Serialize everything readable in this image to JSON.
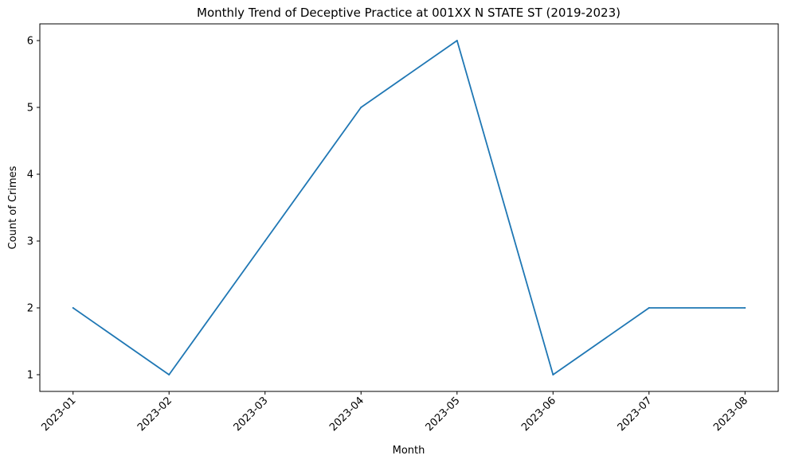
{
  "chart_data": {
    "type": "line",
    "title": "Monthly Trend of Deceptive Practice at 001XX N STATE ST (2019-2023)",
    "xlabel": "Month",
    "ylabel": "Count of Crimes",
    "categories": [
      "2023-01",
      "2023-02",
      "2023-03",
      "2023-04",
      "2023-05",
      "2023-06",
      "2023-07",
      "2023-08"
    ],
    "values": [
      2,
      1,
      3,
      5,
      6,
      1,
      2,
      2
    ],
    "yticks": [
      1,
      2,
      3,
      4,
      5,
      6
    ],
    "ylim": [
      0.75,
      6.25
    ],
    "grid": false,
    "legend": "none",
    "line_color": "#1f77b4"
  }
}
